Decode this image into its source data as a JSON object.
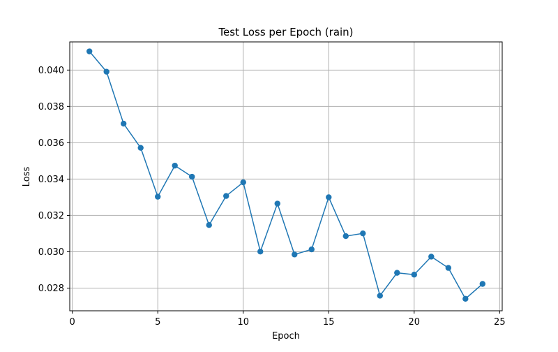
{
  "chart_data": {
    "type": "line",
    "title": "Test Loss per Epoch (rain)",
    "xlabel": "Epoch",
    "ylabel": "Loss",
    "xlim": [
      -0.15,
      25.15
    ],
    "ylim": [
      0.02675,
      0.04155
    ],
    "x_ticks": [
      0,
      5,
      10,
      15,
      20,
      25
    ],
    "y_ticks": [
      0.028,
      0.03,
      0.032,
      0.034,
      0.036,
      0.038,
      0.04
    ],
    "y_tick_labels": [
      "0.028",
      "0.030",
      "0.032",
      "0.034",
      "0.036",
      "0.038",
      "0.040"
    ],
    "grid": true,
    "line_color": "#1f77b4",
    "series": [
      {
        "x": [
          1,
          2,
          3,
          4,
          5,
          6,
          7,
          8,
          9,
          10,
          11,
          12,
          13,
          14,
          15,
          16,
          17,
          18,
          19,
          20,
          21,
          22,
          23,
          24
        ],
        "values": [
          0.04103,
          0.03991,
          0.03705,
          0.03572,
          0.03303,
          0.03474,
          0.03413,
          0.03147,
          0.03307,
          0.03382,
          0.03001,
          0.03265,
          0.02985,
          0.03013,
          0.033,
          0.03086,
          0.03101,
          0.02758,
          0.02884,
          0.02874,
          0.02973,
          0.02911,
          0.02741,
          0.02823
        ]
      }
    ]
  }
}
